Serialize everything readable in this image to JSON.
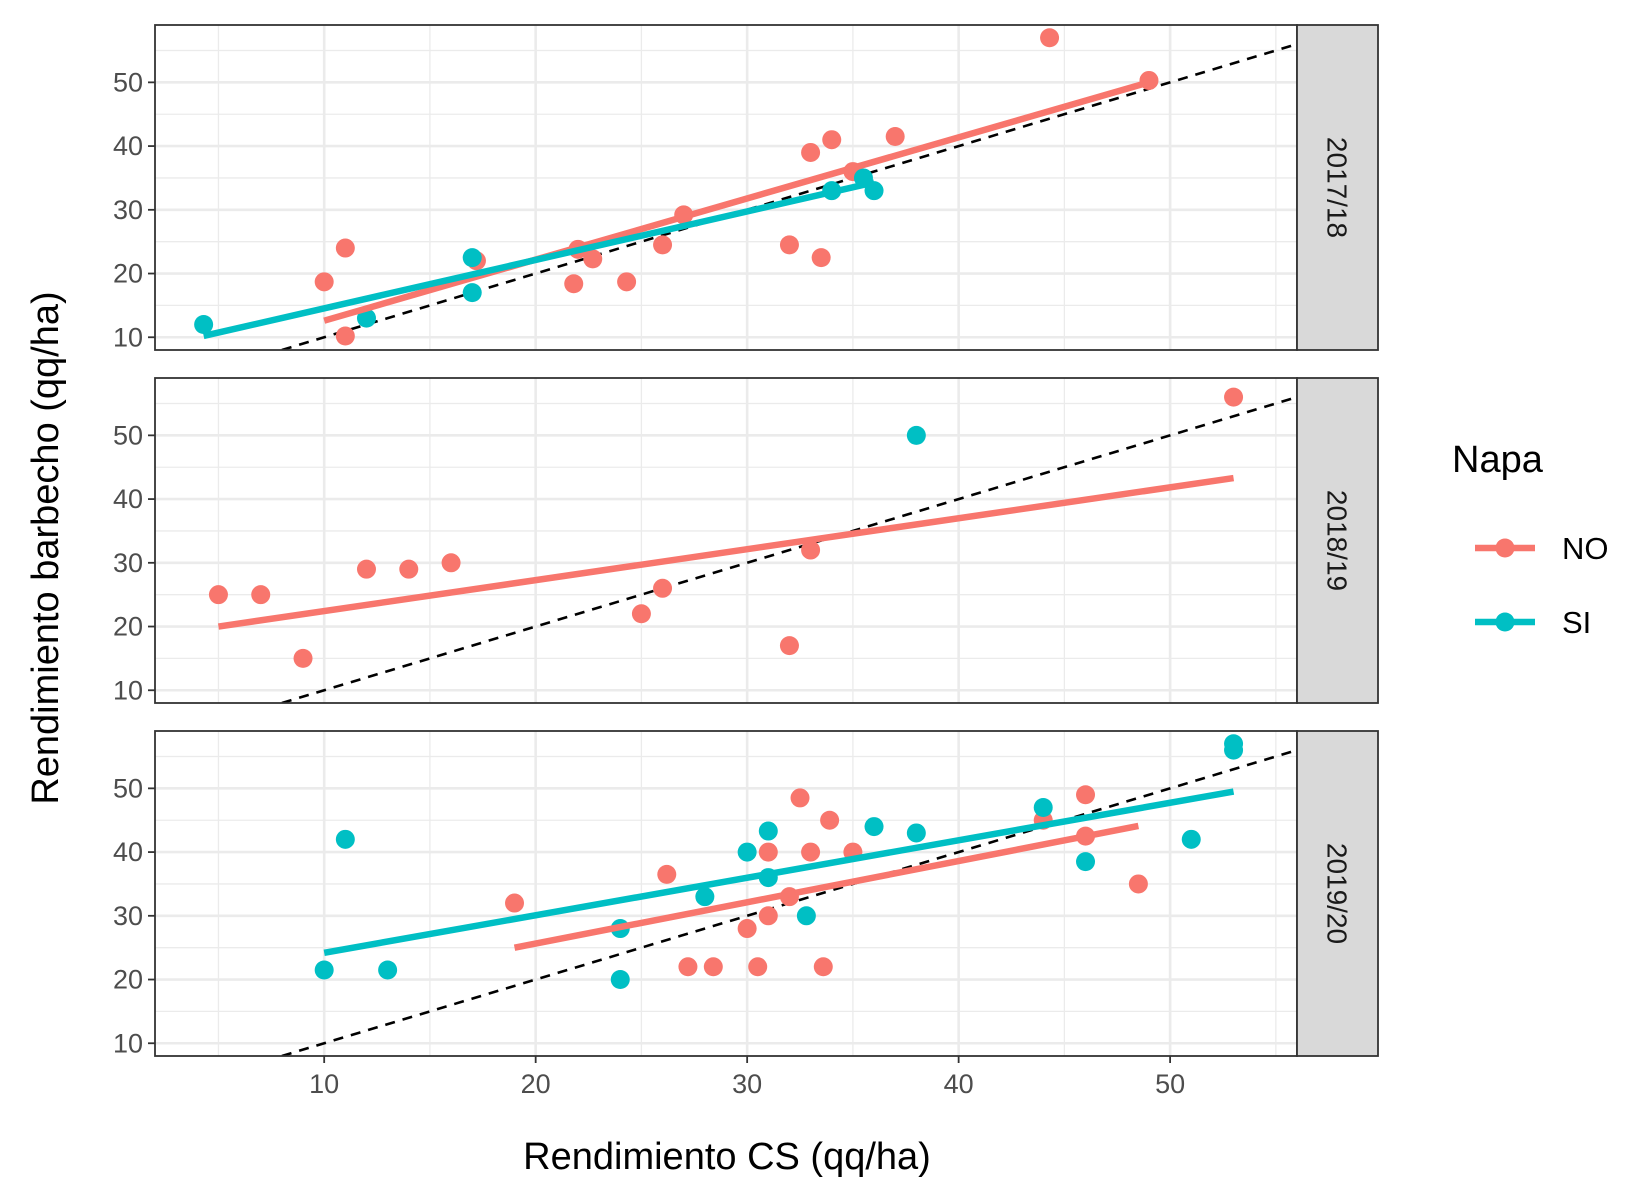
{
  "chart_data": {
    "type": "scatter",
    "xlabel": "Rendimiento CS (qq/ha)",
    "ylabel": "Rendimiento barbecho (qq/ha)",
    "xlim": [
      2,
      56
    ],
    "ylim": [
      8,
      59
    ],
    "x_ticks": [
      10,
      20,
      30,
      40,
      50
    ],
    "y_ticks": [
      10,
      20,
      30,
      40,
      50
    ],
    "grid": true,
    "reference_line": "1:1 dashed",
    "legend": {
      "title": "Napa",
      "position": "right",
      "entries": [
        {
          "label": "NO",
          "color": "#F8766D"
        },
        {
          "label": "SI",
          "color": "#00BFC4"
        }
      ]
    },
    "facets": [
      {
        "label": "2017/18",
        "series": [
          {
            "name": "NO",
            "color": "#F8766D",
            "points": [
              [
                10,
                18.7
              ],
              [
                11,
                24
              ],
              [
                11,
                10.2
              ],
              [
                17.2,
                22
              ],
              [
                21.8,
                18.4
              ],
              [
                22,
                23.8
              ],
              [
                22.7,
                22.3
              ],
              [
                24.3,
                18.7
              ],
              [
                26,
                24.5
              ],
              [
                27,
                29.2
              ],
              [
                32,
                24.5
              ],
              [
                33,
                39
              ],
              [
                33.5,
                22.5
              ],
              [
                34,
                41
              ],
              [
                35,
                36
              ],
              [
                37,
                41.5
              ],
              [
                44.3,
                57
              ],
              [
                49,
                50.3
              ]
            ],
            "fit": [
              [
                10,
                12.6
              ],
              [
                49,
                50
              ]
            ]
          },
          {
            "name": "SI",
            "color": "#00BFC4",
            "points": [
              [
                4.3,
                12
              ],
              [
                12,
                13
              ],
              [
                17,
                22.5
              ],
              [
                17,
                17
              ],
              [
                34,
                33
              ],
              [
                35.5,
                35
              ],
              [
                36,
                33
              ]
            ],
            "fit": [
              [
                4.3,
                10.2
              ],
              [
                36,
                34.3
              ]
            ]
          }
        ]
      },
      {
        "label": "2018/19",
        "series": [
          {
            "name": "NO",
            "color": "#F8766D",
            "points": [
              [
                5,
                25
              ],
              [
                7,
                25
              ],
              [
                9,
                15
              ],
              [
                12,
                29
              ],
              [
                14,
                29
              ],
              [
                16,
                30
              ],
              [
                25,
                22
              ],
              [
                26,
                26
              ],
              [
                32,
                17
              ],
              [
                33,
                32
              ],
              [
                53,
                56
              ]
            ],
            "fit": [
              [
                5,
                20
              ],
              [
                53,
                43.3
              ]
            ]
          },
          {
            "name": "SI",
            "color": "#00BFC4",
            "points": [
              [
                38,
                50
              ]
            ],
            "fit": []
          }
        ]
      },
      {
        "label": "2019/20",
        "series": [
          {
            "name": "NO",
            "color": "#F8766D",
            "points": [
              [
                19,
                32
              ],
              [
                26.2,
                36.5
              ],
              [
                27.2,
                22
              ],
              [
                28.4,
                22
              ],
              [
                30,
                28
              ],
              [
                30.5,
                22
              ],
              [
                31,
                30
              ],
              [
                31,
                40
              ],
              [
                32,
                33
              ],
              [
                32.5,
                48.5
              ],
              [
                33,
                40
              ],
              [
                33.6,
                22
              ],
              [
                33.9,
                45
              ],
              [
                35,
                40
              ],
              [
                44,
                45
              ],
              [
                46,
                49
              ],
              [
                46,
                42.5
              ],
              [
                48.5,
                35
              ]
            ],
            "fit": [
              [
                19,
                25
              ],
              [
                48.5,
                44.1
              ]
            ]
          },
          {
            "name": "SI",
            "color": "#00BFC4",
            "points": [
              [
                10,
                21.5
              ],
              [
                11,
                42
              ],
              [
                13,
                21.5
              ],
              [
                24,
                28
              ],
              [
                24,
                20
              ],
              [
                28,
                33
              ],
              [
                30,
                40
              ],
              [
                31,
                43.3
              ],
              [
                31,
                36
              ],
              [
                32.8,
                30
              ],
              [
                36,
                44
              ],
              [
                38,
                43
              ],
              [
                44,
                47
              ],
              [
                46,
                38.5
              ],
              [
                51,
                42
              ],
              [
                53,
                57
              ],
              [
                53,
                56
              ]
            ],
            "fit": [
              [
                10,
                24.2
              ],
              [
                53,
                49.5
              ]
            ]
          }
        ]
      }
    ]
  }
}
